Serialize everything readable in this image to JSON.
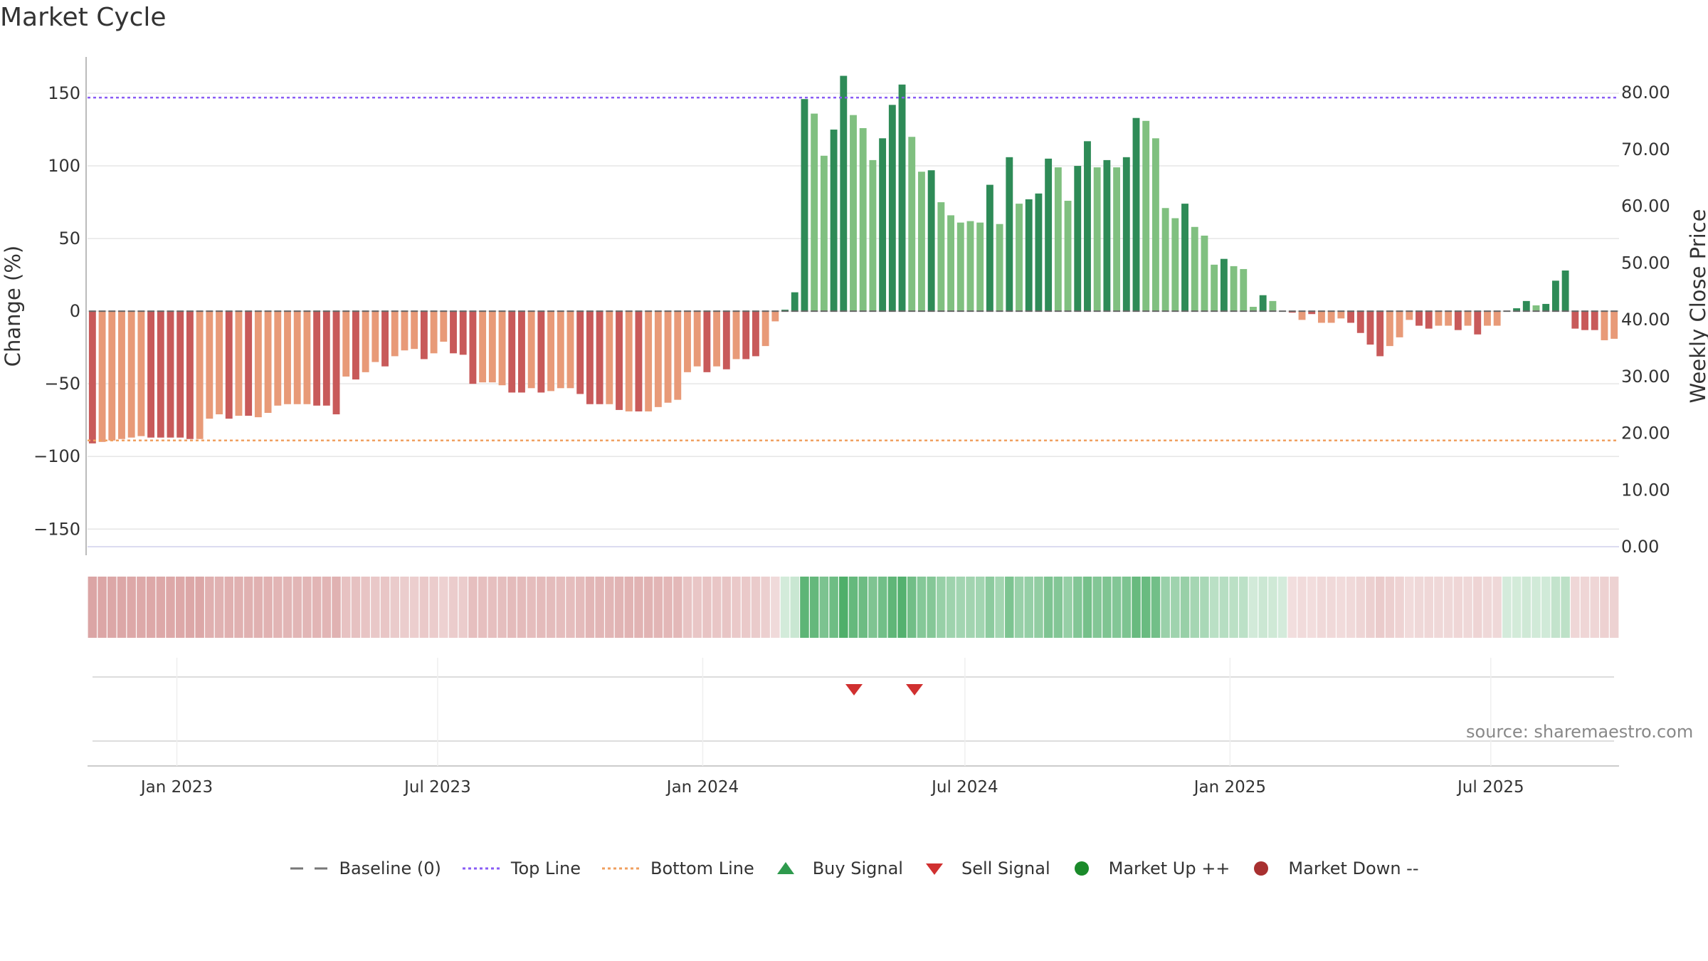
{
  "title": "Market Cycle",
  "source": "source: sharemaestro.com",
  "legend": {
    "items": [
      {
        "name": "baseline",
        "label": "Baseline (0)",
        "icon": "dash-line-icon",
        "color": "#777777"
      },
      {
        "name": "top-line",
        "label": "Top Line",
        "icon": "dotted-line-icon",
        "color": "#8a5cf5"
      },
      {
        "name": "bottom-line",
        "label": "Bottom Line",
        "icon": "dotted-line-icon",
        "color": "#f0a060"
      },
      {
        "name": "buy-signal",
        "label": "Buy Signal",
        "icon": "triangle-up-icon",
        "color": "#2e9a4d"
      },
      {
        "name": "sell-signal",
        "label": "Sell Signal",
        "icon": "triangle-down-icon",
        "color": "#d03030"
      },
      {
        "name": "market-up",
        "label": "Market Up ++",
        "icon": "circle-icon",
        "color": "#1a8a2a"
      },
      {
        "name": "market-down",
        "label": "Market Down --",
        "icon": "circle-icon",
        "color": "#a83030"
      }
    ]
  },
  "chart_data": {
    "type": "bar",
    "title": "Market Cycle",
    "ylabel": "Change (%)",
    "y2label": "Weekly Close Price",
    "ylim": [
      -168,
      175
    ],
    "y2lim": [
      0,
      80
    ],
    "yticks": [
      "150",
      "100",
      "50",
      "0",
      "−50",
      "−100",
      "−150"
    ],
    "y2ticks": [
      "80.00",
      "70.00",
      "60.00",
      "50.00",
      "40.00",
      "30.00",
      "20.00",
      "10.00",
      "0.00"
    ],
    "x_start": "2022-10-31",
    "x_end": "2025-09-28",
    "xticks": [
      "Jan 2023",
      "Jul 2023",
      "Jan 2024",
      "Jul 2024",
      "Jan 2025",
      "Jul 2025"
    ],
    "xtick_dates": [
      "2023-01-01",
      "2023-07-01",
      "2024-01-01",
      "2024-07-01",
      "2025-01-01",
      "2025-07-01"
    ],
    "top_line": 147,
    "bottom_line": -89,
    "baseline": 0,
    "colors": {
      "strong_up": "#2e8b57",
      "weak_up": "#80c080",
      "strong_down": "#c85a5a",
      "weak_down": "#e89a78",
      "top_line": "#8a5cf5",
      "bottom_line": "#f0a060",
      "sell": "#d03030",
      "heat_up": "#3ca65a",
      "heat_down": "#c46a6a"
    },
    "values": [
      -91,
      -90,
      -89,
      -88,
      -87,
      -86,
      -87,
      -87,
      -87,
      -87,
      -88,
      -88,
      -74,
      -71,
      -74,
      -72,
      -72,
      -73,
      -70,
      -65,
      -64,
      -64,
      -64,
      -65,
      -65,
      -71,
      -45,
      -47,
      -42,
      -35,
      -38,
      -31,
      -27,
      -26,
      -33,
      -29,
      -21,
      -29,
      -30,
      -50,
      -49,
      -49,
      -51,
      -56,
      -56,
      -53,
      -56,
      -55,
      -53,
      -53,
      -57,
      -64,
      -64,
      -64,
      -68,
      -69,
      -69,
      -69,
      -66,
      -63,
      -61,
      -42,
      -38,
      -42,
      -38,
      -40,
      -33,
      -33,
      -31,
      -24,
      -7,
      1,
      13,
      146,
      136,
      107,
      125,
      162,
      135,
      126,
      104,
      119,
      142,
      156,
      120,
      96,
      97,
      75,
      66,
      61,
      62,
      61,
      87,
      60,
      106,
      74,
      77,
      81,
      105,
      99,
      76,
      100,
      117,
      99,
      104,
      99,
      106,
      133,
      131,
      119,
      71,
      64,
      74,
      58,
      52,
      32,
      36,
      31,
      29,
      3,
      11,
      7,
      0,
      -1,
      -6,
      -2,
      -8,
      -8,
      -5,
      -8,
      -15,
      -23,
      -31,
      -24,
      -18,
      -6,
      -10,
      -12,
      -10,
      -10,
      -13,
      -10,
      -16,
      -10,
      -10,
      0,
      2,
      7,
      4,
      5,
      21,
      28,
      -12,
      -13,
      -13,
      -20,
      -19
    ],
    "strength": [
      "s",
      "w",
      "w",
      "w",
      "w",
      "w",
      "s",
      "s",
      "s",
      "s",
      "s",
      "w",
      "w",
      "w",
      "s",
      "w",
      "s",
      "w",
      "w",
      "w",
      "w",
      "w",
      "w",
      "s",
      "s",
      "s",
      "w",
      "s",
      "w",
      "w",
      "s",
      "w",
      "w",
      "w",
      "s",
      "w",
      "w",
      "s",
      "s",
      "s",
      "w",
      "w",
      "w",
      "s",
      "s",
      "w",
      "s",
      "w",
      "w",
      "w",
      "s",
      "s",
      "s",
      "w",
      "s",
      "w",
      "s",
      "w",
      "w",
      "w",
      "w",
      "w",
      "w",
      "s",
      "w",
      "s",
      "w",
      "s",
      "s",
      "w",
      "w",
      "s",
      "s",
      "s",
      "w",
      "w",
      "s",
      "s",
      "w",
      "w",
      "w",
      "s",
      "s",
      "s",
      "w",
      "w",
      "s",
      "w",
      "w",
      "w",
      "w",
      "w",
      "s",
      "w",
      "s",
      "w",
      "s",
      "s",
      "s",
      "w",
      "w",
      "s",
      "s",
      "w",
      "s",
      "w",
      "s",
      "s",
      "w",
      "w",
      "w",
      "w",
      "s",
      "w",
      "w",
      "w",
      "s",
      "w",
      "w",
      "w",
      "s",
      "w",
      "s",
      "s",
      "w",
      "s",
      "w",
      "w",
      "w",
      "s",
      "s",
      "s",
      "s",
      "w",
      "w",
      "w",
      "s",
      "s",
      "w",
      "w",
      "s",
      "w",
      "s",
      "w",
      "w",
      "w",
      "s",
      "s",
      "w",
      "s",
      "s",
      "s",
      "s",
      "s",
      "s",
      "w",
      "w"
    ],
    "sell_signals": [
      "2024-04-15",
      "2024-05-27"
    ],
    "buy_signals": []
  }
}
